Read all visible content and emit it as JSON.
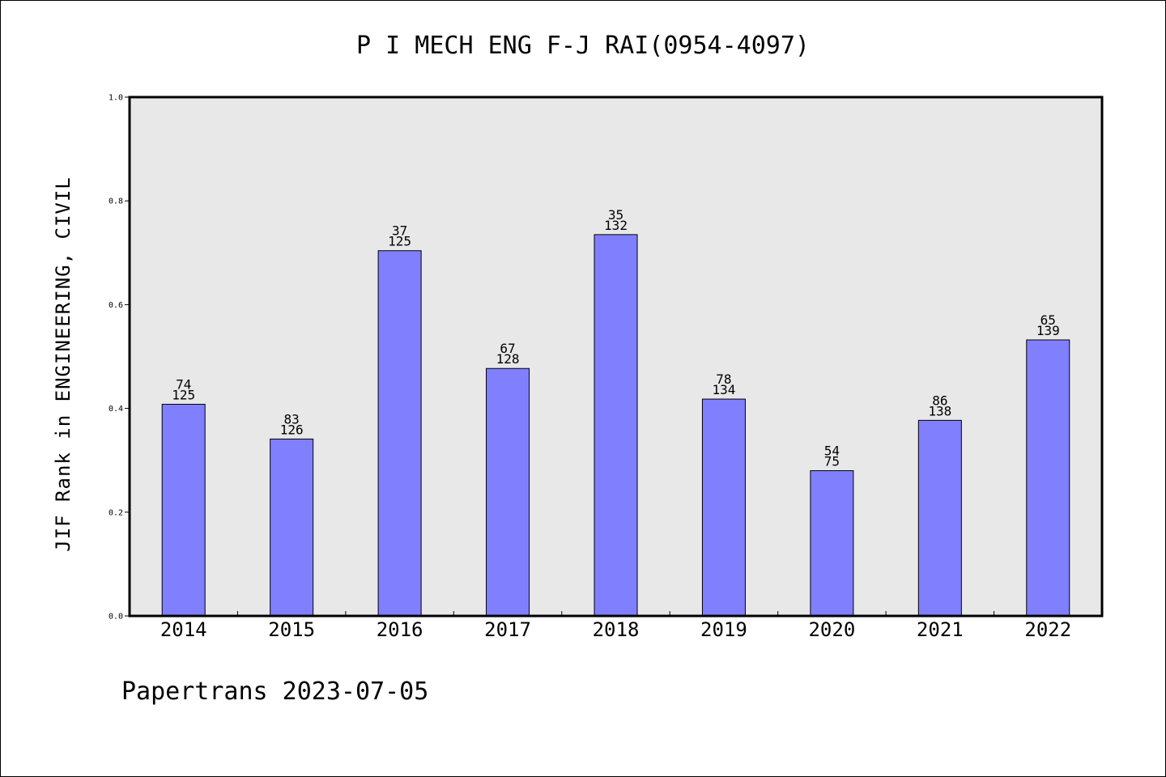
{
  "chart_data": {
    "type": "bar",
    "title": "P I MECH ENG F-J RAI(0954-4097)",
    "xlabel": "",
    "ylabel": "JIF Rank in ENGINEERING, CIVIL",
    "ylim": [
      0,
      1.0
    ],
    "yticks": [
      "0.0",
      "0.2",
      "0.4",
      "0.6",
      "0.8",
      "1.0"
    ],
    "grid": false,
    "bar_color": "#8080ff",
    "plot_background": "#e8e8e8",
    "categories": [
      "2014",
      "2015",
      "2016",
      "2017",
      "2018",
      "2019",
      "2020",
      "2021",
      "2022"
    ],
    "values": [
      0.408,
      0.341,
      0.704,
      0.477,
      0.735,
      0.418,
      0.28,
      0.377,
      0.532
    ],
    "rank": [
      "74",
      "83",
      "37",
      "67",
      "35",
      "78",
      "54",
      "86",
      "65"
    ],
    "total": [
      "125",
      "126",
      "125",
      "128",
      "132",
      "134",
      "75",
      "138",
      "139"
    ]
  },
  "footer": {
    "text": "Papertrans 2023-07-05"
  }
}
